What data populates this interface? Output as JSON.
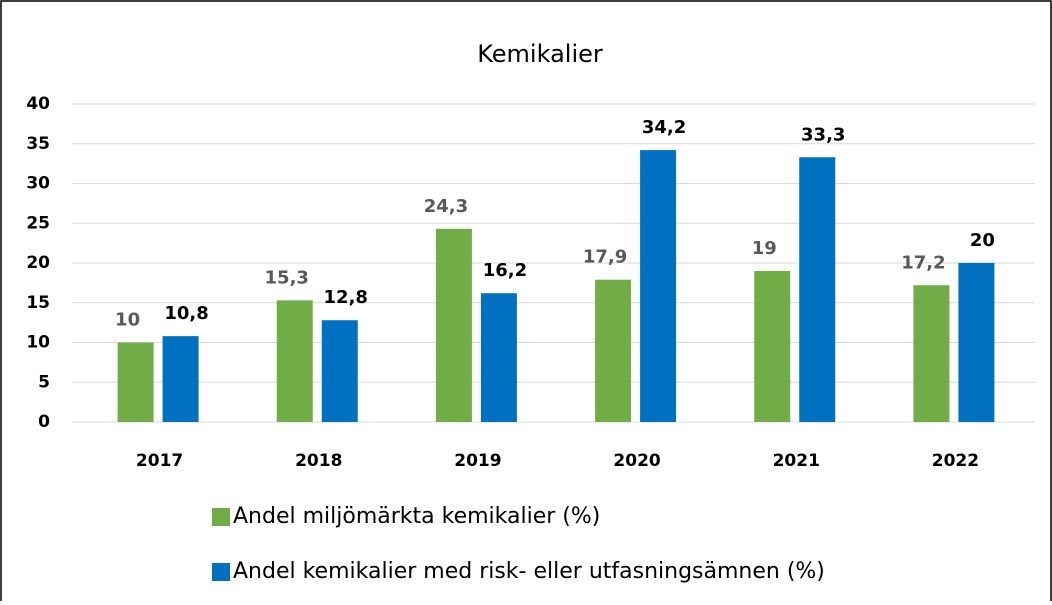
{
  "chart_data": {
    "type": "bar",
    "title": "Kemikalier",
    "categories": [
      "2017",
      "2018",
      "2019",
      "2020",
      "2021",
      "2022"
    ],
    "series": [
      {
        "name": "Andel miljömärkta kemikalier (%)",
        "color": "#70ad47",
        "values": [
          10,
          15.3,
          24.3,
          17.9,
          19,
          17.2
        ],
        "value_labels": [
          "10",
          "15,3",
          "24,3",
          "17,9",
          "19",
          "17,2"
        ]
      },
      {
        "name": "Andel kemikalier med risk- eller utfasningsämnen (%)",
        "color": "#0070c0",
        "values": [
          10.8,
          12.8,
          16.2,
          34.2,
          33.3,
          20
        ],
        "value_labels": [
          "10,8",
          "12,8",
          "16,2",
          "34,2",
          "33,3",
          "20"
        ]
      }
    ],
    "ylim": [
      0,
      40
    ],
    "yticks": [
      0,
      5,
      10,
      15,
      20,
      25,
      30,
      35,
      40
    ],
    "grid": true,
    "legend": "bottom"
  }
}
